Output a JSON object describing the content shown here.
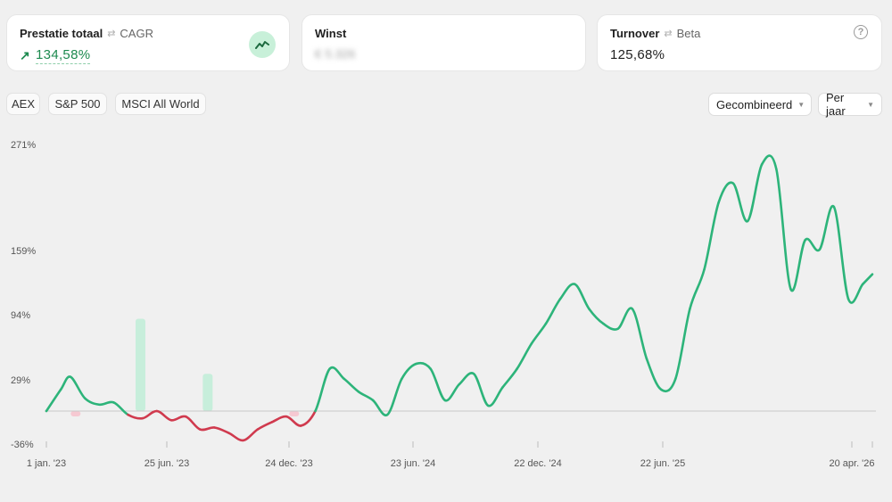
{
  "cards": [
    {
      "title": "Prestatie totaal",
      "alt": "CAGR",
      "value": "134,58%",
      "trend": "positive"
    },
    {
      "title": "Winst",
      "value": "€ 5.326"
    },
    {
      "title": "Turnover",
      "alt": "Beta",
      "value": "125,68%"
    }
  ],
  "icons": {
    "swap": "swap-arrows-icon",
    "up_arrow": "arrow-up-right-icon",
    "trend": "trend-line-icon",
    "help": "question-circle-icon",
    "caret": "caret-down-icon"
  },
  "benchmarks": [
    "AEX",
    "S&P 500",
    "MSCI All World"
  ],
  "controls": {
    "mode": "Gecombineerd",
    "period": "Per jaar"
  },
  "colors": {
    "positive": "#2db47a",
    "negative": "#d03a4e",
    "positive_bar": "#c7eedb",
    "negative_bar": "#f6c9d2"
  },
  "chart_data": {
    "type": "line",
    "y_ticks": [
      "271%",
      "159%",
      "94%",
      "29%",
      "-36%"
    ],
    "x_ticks": [
      "1 jan. '23",
      "25 jun. '23",
      "24 dec. '23",
      "23 jun. '24",
      "22 dec. '24",
      "22 jun. '25",
      "20 apr. '26"
    ],
    "x": [
      0,
      3,
      5,
      8,
      11,
      14,
      17,
      20,
      23,
      26,
      29,
      32,
      35,
      38,
      41,
      44,
      47,
      50,
      53,
      56,
      59,
      62,
      65,
      68,
      71,
      74,
      77,
      80,
      83,
      86,
      89,
      92,
      95,
      98,
      101,
      104,
      107,
      110,
      113,
      116,
      119,
      122,
      125,
      128,
      131,
      134,
      137,
      140,
      143,
      146,
      149,
      152,
      155,
      158,
      161,
      164,
      167,
      170,
      172
    ],
    "y": [
      0,
      20,
      32,
      12,
      6,
      8,
      -4,
      -8,
      0,
      -10,
      -6,
      -20,
      -18,
      -24,
      -32,
      -20,
      -12,
      -6,
      -16,
      0,
      40,
      30,
      18,
      10,
      -4,
      30,
      45,
      40,
      10,
      25,
      35,
      5,
      22,
      40,
      65,
      85,
      110,
      125,
      100,
      85,
      80,
      100,
      50,
      20,
      30,
      100,
      140,
      210,
      230,
      190,
      250,
      245,
      120,
      170,
      160,
      205,
      110,
      125,
      135
    ],
    "bars": [
      {
        "x": 19.5,
        "value": 90,
        "sign": "positive"
      },
      {
        "x": 33.5,
        "value": 35,
        "sign": "positive"
      },
      {
        "x": 6,
        "value": -5,
        "sign": "negative"
      },
      {
        "x": 51.5,
        "value": -5,
        "sign": "negative"
      }
    ],
    "ylim": [
      -36,
      271
    ],
    "xlim": [
      0,
      172
    ],
    "grid": false
  }
}
